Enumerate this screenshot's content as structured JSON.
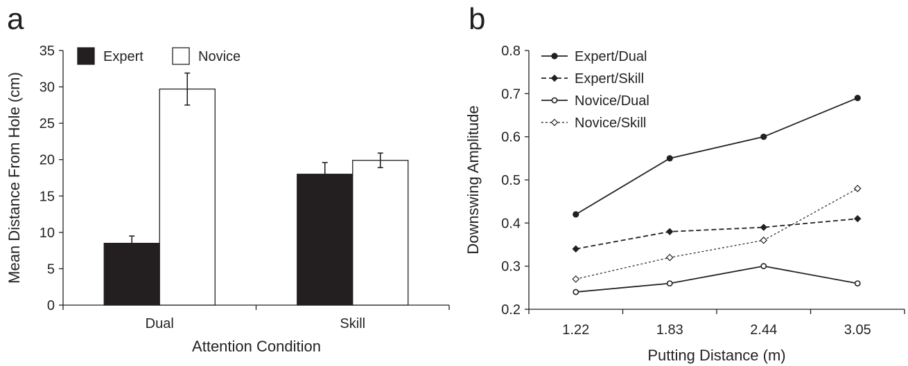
{
  "panels": {
    "a": {
      "letter": "a"
    },
    "b": {
      "letter": "b"
    }
  },
  "chart_data": [
    {
      "type": "bar",
      "title": "",
      "xlabel": "Attention Condition",
      "ylabel": "Mean Distance From Hole (cm)",
      "categories": [
        "Dual",
        "Skill"
      ],
      "ylim": [
        0,
        35
      ],
      "yticks": [
        "0",
        "5",
        "10",
        "15",
        "20",
        "25",
        "30",
        "35"
      ],
      "grid": false,
      "legend_position": "top-left",
      "series": [
        {
          "name": "Expert",
          "values": [
            8.5,
            18.0
          ],
          "errors": [
            1.0,
            1.6
          ],
          "color": "#231f20"
        },
        {
          "name": "Novice",
          "values": [
            29.7,
            19.9
          ],
          "errors": [
            2.2,
            1.0
          ],
          "color": "#ffffff"
        }
      ]
    },
    {
      "type": "line",
      "title": "",
      "xlabel": "Putting Distance (m)",
      "ylabel": "Downswing Amplitude",
      "categories": [
        "1.22",
        "1.83",
        "2.44",
        "3.05"
      ],
      "ylim": [
        0.2,
        0.8
      ],
      "yticks": [
        "0.2",
        "0.3",
        "0.4",
        "0.5",
        "0.6",
        "0.7",
        "0.8"
      ],
      "grid": false,
      "legend_position": "top-left",
      "series": [
        {
          "name": "Expert/Dual",
          "values": [
            0.42,
            0.55,
            0.6,
            0.69
          ],
          "line": "solid",
          "marker": "filled-circle"
        },
        {
          "name": "Expert/Skill",
          "values": [
            0.34,
            0.38,
            0.39,
            0.41
          ],
          "line": "dashed",
          "marker": "filled-diamond"
        },
        {
          "name": "Novice/Dual",
          "values": [
            0.24,
            0.26,
            0.3,
            0.26
          ],
          "line": "solid",
          "marker": "open-circle"
        },
        {
          "name": "Novice/Skill",
          "values": [
            0.27,
            0.32,
            0.36,
            0.48
          ],
          "line": "dotted",
          "marker": "open-diamond"
        }
      ]
    }
  ]
}
